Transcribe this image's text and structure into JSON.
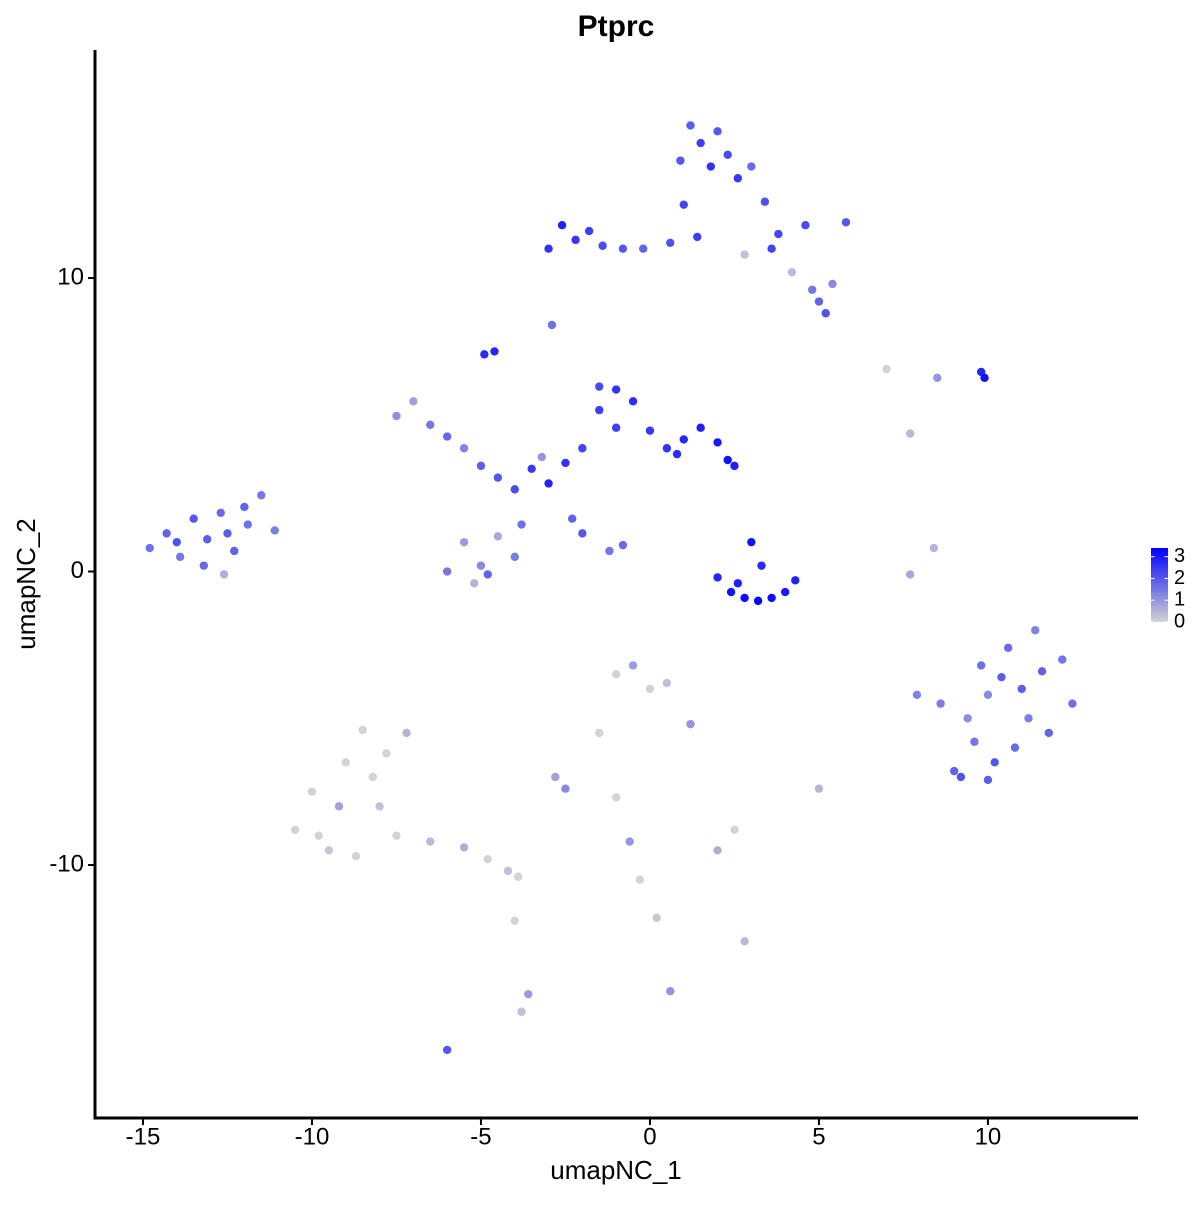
{
  "chart_data": {
    "type": "scatter",
    "title": "Ptprc",
    "x_label": "umapNC_1",
    "y_label": "umapNC_2",
    "xlim": [
      -16.42,
      14.44
    ],
    "ylim": [
      -18.62,
      17.77
    ],
    "xticks": [
      -15,
      -10,
      -5,
      0,
      5,
      10
    ],
    "yticks": [
      -10,
      0,
      10
    ],
    "color_low": "#d3d3d3",
    "color_high": "#0000ff",
    "colorbar_lim": [
      0,
      3.4
    ],
    "colorbar_ticks": [
      0,
      1,
      2,
      3
    ],
    "x": [
      -14.8,
      -14.3,
      -13.9,
      -13.5,
      -13.1,
      -12.7,
      -12.3,
      -11.9,
      -11.5,
      -11.1,
      -14.0,
      -13.2,
      -12.5,
      -12.0,
      -12.6,
      -3.0,
      -2.6,
      -2.2,
      -1.8,
      -1.4,
      -0.8,
      -0.2,
      0.6,
      1.0,
      1.2,
      1.5,
      1.8,
      2.0,
      2.3,
      2.6,
      3.0,
      3.4,
      3.8,
      4.2,
      4.6,
      5.0,
      5.4,
      5.8,
      5.2,
      4.8,
      1.4,
      0.9,
      2.8,
      -2.9,
      3.6,
      -7.5,
      -7.0,
      -6.5,
      -6.0,
      -5.5,
      -5.0,
      -4.5,
      -4.0,
      -3.5,
      -3.0,
      -2.5,
      -2.0,
      -1.5,
      -1.0,
      -0.5,
      0.0,
      0.5,
      1.0,
      1.5,
      2.0,
      2.3,
      2.5,
      -5.5,
      -5.0,
      -4.5,
      -4.0,
      -6.0,
      -5.2,
      -4.8,
      -3.8,
      -1.2,
      -0.8,
      -2.3,
      -2.0,
      -1.5,
      -4.9,
      -4.6,
      -3.2,
      -1.0,
      0.8,
      2.0,
      2.4,
      2.8,
      3.2,
      3.6,
      4.0,
      4.3,
      3.0,
      3.3,
      2.6,
      8.6,
      9.0,
      9.4,
      9.8,
      10.2,
      10.6,
      11.0,
      11.4,
      11.8,
      12.2,
      12.5,
      9.2,
      9.6,
      10.0,
      10.4,
      10.8,
      11.2,
      11.6,
      10.0,
      7.9,
      -10.5,
      -10.0,
      -9.5,
      -9.0,
      -8.5,
      -8.0,
      -7.5,
      -7.2,
      -9.8,
      -9.2,
      -8.7,
      -8.2,
      -7.8,
      -6.5,
      -5.5,
      -4.8,
      -4.2,
      -3.9,
      -1.0,
      -0.5,
      0.0,
      0.5,
      1.2,
      -1.5,
      -2.8,
      -2.5,
      -1.0,
      -0.6,
      -0.3,
      0.2,
      2.0,
      2.5,
      2.8,
      5.0,
      -4.0,
      -3.6,
      -3.8,
      -6.0,
      7.7,
      8.4,
      9.8,
      9.9,
      7.0,
      7.7,
      8.5,
      0.6
    ],
    "y": [
      0.8,
      1.3,
      0.5,
      1.8,
      1.1,
      2.0,
      0.7,
      1.6,
      2.6,
      1.4,
      1.0,
      0.2,
      1.3,
      2.2,
      -0.1,
      11.0,
      11.8,
      11.3,
      11.6,
      11.1,
      11.0,
      11.0,
      11.2,
      12.5,
      15.2,
      14.6,
      13.8,
      15.0,
      14.2,
      13.4,
      13.8,
      12.6,
      11.5,
      10.2,
      11.8,
      9.2,
      9.8,
      11.9,
      8.8,
      9.6,
      11.4,
      14.0,
      10.8,
      8.4,
      11.0,
      5.3,
      5.8,
      5.0,
      4.6,
      4.2,
      3.6,
      3.2,
      2.8,
      3.5,
      3.0,
      3.7,
      4.2,
      5.5,
      6.2,
      5.8,
      4.8,
      4.2,
      4.5,
      4.9,
      4.4,
      3.8,
      3.6,
      1.0,
      0.2,
      1.2,
      0.5,
      0.0,
      -0.4,
      -0.1,
      1.6,
      0.7,
      0.9,
      1.8,
      1.3,
      6.3,
      7.4,
      7.5,
      3.9,
      4.9,
      4.0,
      -0.2,
      -0.7,
      -0.9,
      -1.0,
      -0.9,
      -0.7,
      -0.3,
      1.0,
      0.2,
      -0.4,
      -4.5,
      -6.8,
      -5.0,
      -3.2,
      -6.5,
      -2.6,
      -4.0,
      -2.0,
      -5.5,
      -3.0,
      -4.5,
      -7.0,
      -5.8,
      -4.2,
      -3.6,
      -6.0,
      -5.0,
      -3.4,
      -7.1,
      -4.2,
      -8.8,
      -7.5,
      -9.5,
      -6.5,
      -5.4,
      -8.0,
      -9.0,
      -5.5,
      -9.0,
      -8.0,
      -9.7,
      -7.0,
      -6.2,
      -9.2,
      -9.4,
      -9.8,
      -10.2,
      -10.4,
      -3.5,
      -3.2,
      -4.0,
      -3.8,
      -5.2,
      -5.5,
      -7.0,
      -7.4,
      -7.7,
      -9.2,
      -10.5,
      -11.8,
      -9.5,
      -8.8,
      -12.6,
      -7.4,
      -11.9,
      -14.4,
      -15.0,
      -16.3,
      -0.1,
      0.8,
      6.8,
      6.6,
      6.9,
      4.7,
      6.6,
      -14.3
    ],
    "values": [
      1.6,
      1.8,
      1.5,
      2.0,
      1.9,
      1.7,
      1.8,
      1.6,
      1.5,
      1.4,
      2.1,
      1.7,
      1.9,
      1.8,
      0.6,
      2.6,
      2.9,
      2.5,
      2.4,
      2.2,
      2.0,
      1.8,
      2.1,
      2.3,
      1.9,
      2.4,
      2.6,
      2.0,
      2.2,
      2.5,
      1.7,
      2.1,
      2.3,
      0.4,
      2.2,
      1.8,
      1.2,
      2.0,
      2.1,
      1.5,
      2.4,
      2.0,
      0.3,
      1.6,
      2.3,
      1.1,
      0.8,
      1.5,
      1.7,
      1.3,
      1.9,
      2.0,
      2.2,
      2.5,
      2.8,
      2.6,
      2.3,
      2.4,
      2.6,
      2.7,
      2.5,
      2.6,
      2.8,
      2.9,
      3.0,
      3.1,
      2.9,
      0.9,
      1.2,
      0.7,
      1.4,
      1.5,
      0.5,
      1.8,
      1.6,
      1.5,
      1.7,
      1.8,
      2.0,
      2.2,
      2.7,
      2.8,
      1.0,
      2.4,
      2.7,
      2.8,
      3.1,
      3.2,
      3.3,
      3.2,
      3.0,
      2.9,
      3.1,
      2.7,
      2.9,
      1.4,
      1.8,
      1.1,
      1.6,
      2.0,
      1.7,
      1.9,
      1.3,
      1.8,
      1.5,
      1.6,
      2.1,
      1.5,
      1.2,
      1.9,
      1.7,
      1.4,
      1.8,
      1.9,
      1.3,
      0,
      0,
      0.2,
      0,
      0,
      0.3,
      0,
      0.5,
      0,
      0.8,
      0,
      0,
      0,
      0.4,
      0.6,
      0,
      0.3,
      0,
      0,
      0.9,
      0,
      0.3,
      1.0,
      0,
      0.8,
      1.2,
      0,
      1.0,
      0,
      0.2,
      0.6,
      0,
      0.4,
      0.5,
      0,
      0.9,
      0.3,
      2.0,
      0.7,
      0.5,
      2.8,
      3.1,
      0,
      0.4,
      1.0,
      1.0
    ]
  }
}
